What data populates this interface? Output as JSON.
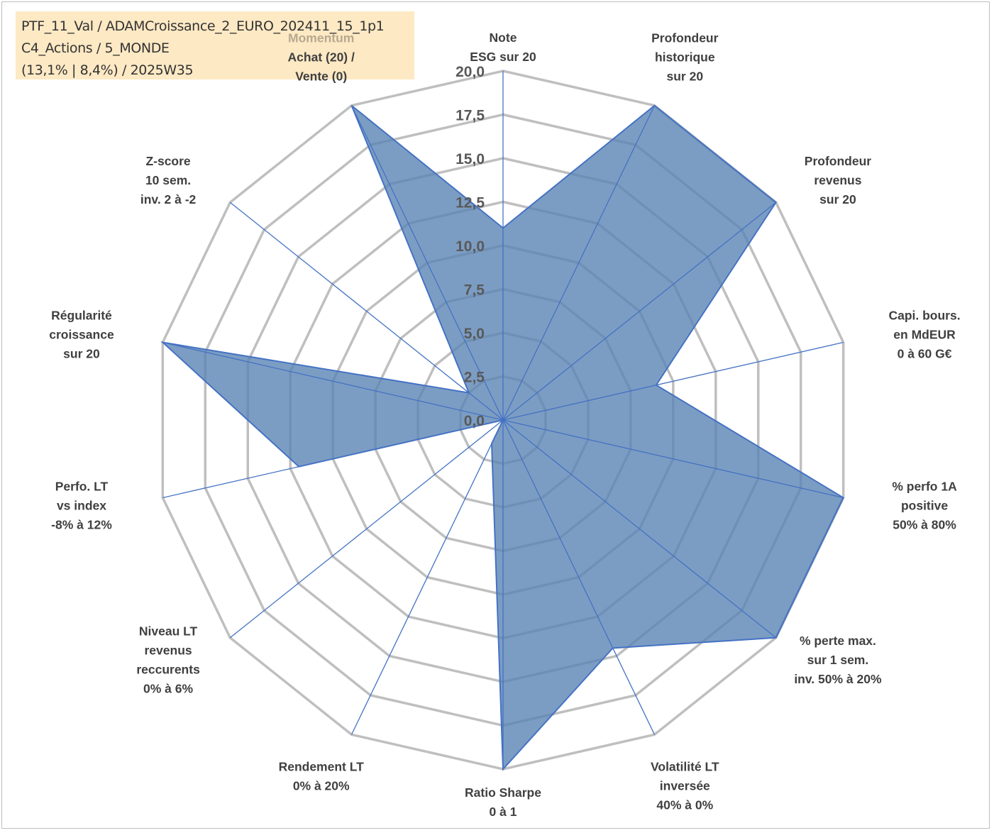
{
  "header": {
    "line1": "PTF_11_Val / ADAMCroissance_2_EURO_202411_15_1p1",
    "line2": "C4_Actions / 5_MONDE",
    "line3": "(13,1% | 8,4%) / 2025W35"
  },
  "colors": {
    "fill": "#5b84b4",
    "stroke": "#4472c4",
    "grid": "#bfbfbf",
    "header_bg": "#fde9c4"
  },
  "chart_data": {
    "type": "radar",
    "rlim": [
      0,
      20
    ],
    "ticks": [
      "0,0",
      "2,5",
      "5,0",
      "7,5",
      "10,0",
      "12,5",
      "15,0",
      "17,5",
      "20,0"
    ],
    "grid": true,
    "axes": [
      {
        "lines": [
          "Note",
          "ESG sur 20"
        ]
      },
      {
        "lines": [
          "Profondeur",
          "historique",
          "sur 20"
        ]
      },
      {
        "lines": [
          "Profondeur",
          "revenus",
          "sur 20"
        ]
      },
      {
        "lines": [
          "Capi. bours.",
          "en MdEUR",
          "0 à 60 G€"
        ]
      },
      {
        "lines": [
          "% perfo 1A",
          "positive",
          "50% à 80%"
        ]
      },
      {
        "lines": [
          "% perte max.",
          "sur 1 sem.",
          "inv. 50% à 20%"
        ]
      },
      {
        "lines": [
          "Volatilité LT",
          "inversée",
          "40% à 0%"
        ]
      },
      {
        "lines": [
          "Ratio Sharpe",
          "0 à 1"
        ]
      },
      {
        "lines": [
          "Rendement LT",
          "0% à 20%"
        ]
      },
      {
        "lines": [
          "Niveau LT",
          "revenus",
          "reccurents",
          "0% à 6%"
        ]
      },
      {
        "lines": [
          "Perfo. LT",
          "vs index",
          "-8% à 12%"
        ]
      },
      {
        "lines": [
          "Régularité",
          "croissance",
          "sur 20"
        ]
      },
      {
        "lines": [
          "Z-score",
          "10 sem.",
          "inv. 2 à -2"
        ]
      },
      {
        "lines": [
          "Momentum",
          "Achat (20) /",
          "Vente (0)"
        ],
        "muted_first_line": true
      }
    ],
    "series": [
      {
        "values": [
          11,
          20,
          20,
          9,
          20,
          20,
          14.5,
          20,
          1.5,
          0,
          12,
          20,
          2.5,
          20
        ]
      }
    ]
  }
}
